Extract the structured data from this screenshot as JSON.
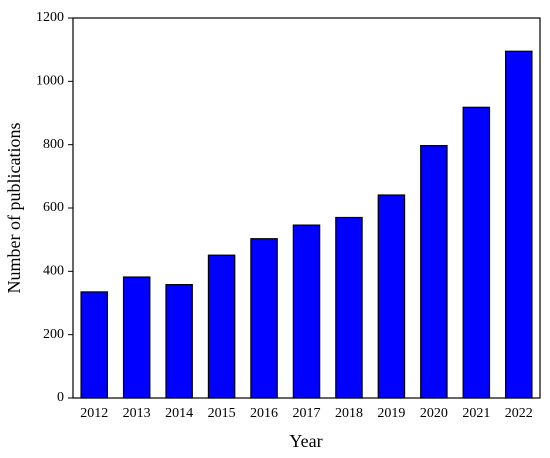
{
  "chart_data": {
    "type": "bar",
    "x_label": "Year",
    "y_label": "Number of publications",
    "categories": [
      "2012",
      "2013",
      "2014",
      "2015",
      "2016",
      "2017",
      "2018",
      "2019",
      "2020",
      "2021",
      "2022"
    ],
    "values": [
      335,
      382,
      358,
      451,
      503,
      546,
      570,
      641,
      797,
      918,
      1095
    ],
    "color": "#0000ff",
    "ylim": [
      0,
      1200
    ],
    "yticks": [
      0,
      200,
      400,
      600,
      800,
      1000,
      1200
    ]
  }
}
